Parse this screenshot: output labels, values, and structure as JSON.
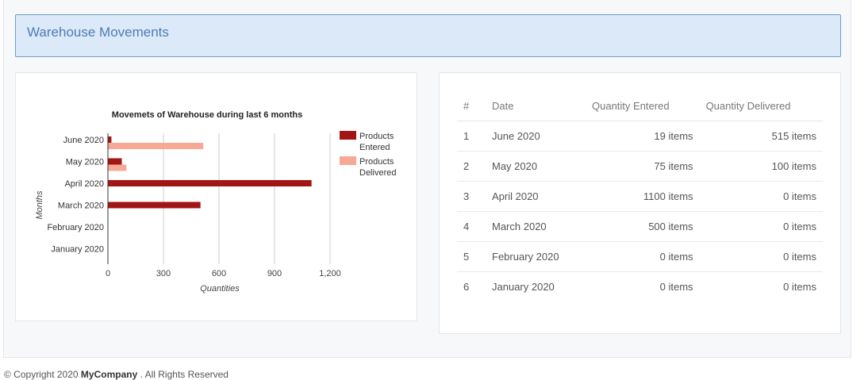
{
  "page": {
    "title": "Warehouse Movements"
  },
  "chart_data": {
    "type": "bar",
    "orientation": "horizontal",
    "title": "Movemets of Warehouse during last 6 months",
    "xlabel": "Quantities",
    "ylabel": "Months",
    "categories": [
      "June 2020",
      "May 2020",
      "April 2020",
      "March 2020",
      "February 2020",
      "January 2020"
    ],
    "series": [
      {
        "name": "Products Entered",
        "values": [
          19,
          75,
          1100,
          500,
          0,
          0
        ],
        "color": "#a31515"
      },
      {
        "name": "Products Delivered",
        "values": [
          515,
          100,
          0,
          0,
          0,
          0
        ],
        "color": "#f7a996"
      }
    ],
    "xlim": [
      0,
      1200
    ],
    "xticks": [
      0,
      300,
      600,
      900,
      1200
    ],
    "xtick_labels": [
      "0",
      "300",
      "600",
      "900",
      "1,200"
    ],
    "grid": true,
    "legend_position": "right"
  },
  "table": {
    "headers": {
      "index": "#",
      "date": "Date",
      "entered": "Quantity Entered",
      "delivered": "Quantity Delivered"
    },
    "rows": [
      {
        "index": "1",
        "date": "June 2020",
        "entered": "19 items",
        "delivered": "515 items"
      },
      {
        "index": "2",
        "date": "May 2020",
        "entered": "75 items",
        "delivered": "100 items"
      },
      {
        "index": "3",
        "date": "April 2020",
        "entered": "1100 items",
        "delivered": "0 items"
      },
      {
        "index": "4",
        "date": "March 2020",
        "entered": "500 items",
        "delivered": "0 items"
      },
      {
        "index": "5",
        "date": "February 2020",
        "entered": "0 items",
        "delivered": "0 items"
      },
      {
        "index": "6",
        "date": "January 2020",
        "entered": "0 items",
        "delivered": "0 items"
      }
    ]
  },
  "footer": {
    "prefix": "© Copyright 2020 ",
    "company": "MyCompany",
    "suffix": " . All Rights Reserved"
  }
}
